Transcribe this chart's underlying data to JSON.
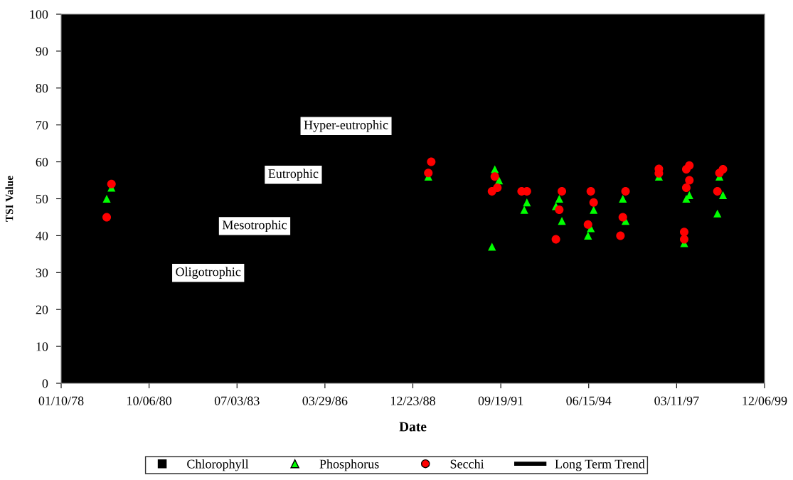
{
  "chart_data": {
    "type": "scatter",
    "xlabel": "Date",
    "ylabel": "TSI Value",
    "xlim": [
      "1978-01-10",
      "1999-12-06"
    ],
    "xticks": [
      {
        "value": "1978-01-10",
        "label": "01/10/78"
      },
      {
        "value": "1980-10-06",
        "label": "10/06/80"
      },
      {
        "value": "1983-07-03",
        "label": "07/03/83"
      },
      {
        "value": "1986-03-29",
        "label": "03/29/86"
      },
      {
        "value": "1988-12-23",
        "label": "12/23/88"
      },
      {
        "value": "1991-09-19",
        "label": "09/19/91"
      },
      {
        "value": "1994-06-15",
        "label": "06/15/94"
      },
      {
        "value": "1997-03-11",
        "label": "03/11/97"
      },
      {
        "value": "1999-12-06",
        "label": "12/06/99"
      }
    ],
    "ylim": [
      0,
      100
    ],
    "yticks": [
      0,
      10,
      20,
      30,
      40,
      50,
      60,
      70,
      80,
      90,
      100
    ],
    "grid": false,
    "legend": "bottom",
    "series": [
      {
        "name": "Chlorophyll",
        "marker": "square",
        "color": "#000000"
      },
      {
        "name": "Phosphorus",
        "marker": "triangle",
        "color": "#00ff00",
        "x": [
          "1979-06-12",
          "1979-08-05",
          "1989-06-17",
          "1991-06-11",
          "1991-07-13",
          "1991-08-30",
          "1992-06-12",
          "1992-07-12",
          "1993-06-07",
          "1993-07-15",
          "1993-08-14",
          "1994-06-07",
          "1994-07-09",
          "1994-08-10",
          "1995-07-08",
          "1995-08-08",
          "1996-08-21",
          "1997-06-05",
          "1997-06-29",
          "1997-08-03",
          "1998-06-18",
          "1998-07-11",
          "1998-08-20"
        ],
        "values": [
          50,
          53,
          56,
          37,
          58,
          55,
          47,
          49,
          48,
          50,
          44,
          40,
          42,
          47,
          50,
          44,
          56,
          38,
          50,
          51,
          46,
          56,
          51
        ]
      },
      {
        "name": "Secchi",
        "marker": "circle",
        "color": "#ff0000",
        "x": [
          "1979-06-12",
          "1979-08-05",
          "1989-06-17",
          "1989-07-20",
          "1991-06-11",
          "1991-07-13",
          "1991-08-11",
          "1992-05-13",
          "1992-07-12",
          "1993-06-07",
          "1993-07-15",
          "1993-08-14",
          "1994-06-07",
          "1994-07-09",
          "1994-08-10",
          "1995-06-11",
          "1995-07-08",
          "1995-08-08",
          "1996-08-21",
          "1996-08-21",
          "1997-06-05",
          "1997-06-05",
          "1997-06-29",
          "1997-06-29",
          "1997-08-03",
          "1997-08-03",
          "1998-06-18",
          "1998-07-11",
          "1998-08-20"
        ],
        "values": [
          45,
          54,
          57,
          60,
          52,
          56,
          53,
          52,
          52,
          39,
          47,
          52,
          43,
          52,
          49,
          40,
          45,
          52,
          56.9,
          58.1,
          41,
          39,
          58,
          53,
          59,
          55,
          52,
          57,
          58
        ]
      },
      {
        "name": "Long Term Trend",
        "type": "line",
        "marker": "none",
        "color": "#000000"
      }
    ],
    "annotations": [
      "Hyper-eutrophic",
      "Eutrophic",
      "Mesotrophic",
      "Oligotrophic"
    ]
  }
}
